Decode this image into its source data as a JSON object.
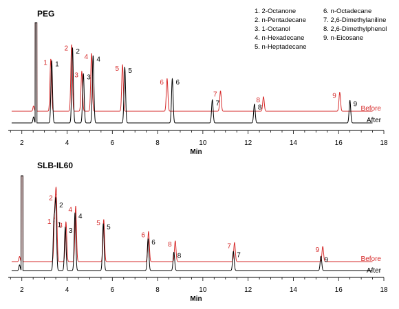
{
  "colors": {
    "before": "#d62a2a",
    "after": "#000000"
  },
  "legend": {
    "col1": [
      "1. 2-Octanone",
      "2. n-Pentadecane",
      "3. 1-Octanol",
      "4. n-Hexadecane",
      "5. n-Heptadecane"
    ],
    "col2": [
      "6. n-Octadecane",
      "7. 2,6-Dimethylaniline",
      "8. 2,6-Dimethylphenol",
      "9. n-Eicosane"
    ]
  },
  "chart_data": [
    {
      "type": "line",
      "title": "PEG",
      "xlabel": "Min",
      "ylabel": "",
      "xlim": [
        1.4,
        18
      ],
      "xticks": [
        2,
        4,
        6,
        8,
        10,
        12,
        14,
        16,
        18
      ],
      "series_labels": {
        "before": "Before",
        "after": "After"
      },
      "solvent": {
        "before": 2.62,
        "after": 2.62
      },
      "series": [
        {
          "name": "Before",
          "peaks": [
            {
              "id": "1",
              "rt": 3.28,
              "height": 0.72
            },
            {
              "id": "2",
              "rt": 4.2,
              "height": 0.92
            },
            {
              "id": "3",
              "rt": 4.65,
              "height": 0.55
            },
            {
              "id": "4",
              "rt": 5.08,
              "height": 0.8
            },
            {
              "id": "5",
              "rt": 6.45,
              "height": 0.64
            },
            {
              "id": "6",
              "rt": 8.42,
              "height": 0.45
            },
            {
              "id": "7",
              "rt": 10.78,
              "height": 0.28
            },
            {
              "id": "8",
              "rt": 12.68,
              "height": 0.2
            },
            {
              "id": "9",
              "rt": 16.05,
              "height": 0.26
            }
          ]
        },
        {
          "name": "After",
          "peaks": [
            {
              "id": "1",
              "rt": 3.32,
              "height": 0.86
            },
            {
              "id": "2",
              "rt": 4.24,
              "height": 1.04
            },
            {
              "id": "3",
              "rt": 4.72,
              "height": 0.68
            },
            {
              "id": "4",
              "rt": 5.15,
              "height": 0.93
            },
            {
              "id": "5",
              "rt": 6.55,
              "height": 0.77
            },
            {
              "id": "6",
              "rt": 8.65,
              "height": 0.61
            },
            {
              "id": "7",
              "rt": 10.42,
              "height": 0.32
            },
            {
              "id": "8",
              "rt": 12.28,
              "height": 0.26
            },
            {
              "id": "9",
              "rt": 16.5,
              "height": 0.31
            }
          ]
        }
      ]
    },
    {
      "type": "line",
      "title": "SLB-IL60",
      "xlabel": "Min",
      "ylabel": "",
      "xlim": [
        1.4,
        18
      ],
      "xticks": [
        2,
        4,
        6,
        8,
        10,
        12,
        14,
        16,
        18
      ],
      "series_labels": {
        "before": "Before",
        "after": "After"
      },
      "solvent": {
        "before": 2.0,
        "after": 2.0
      },
      "series": [
        {
          "name": "Before",
          "peaks": [
            {
              "id": "1",
              "rt": 3.45,
              "height": 0.55
            },
            {
              "id": "2",
              "rt": 3.52,
              "height": 0.85
            },
            {
              "id": "3",
              "rt": 3.95,
              "height": 0.5
            },
            {
              "id": "4",
              "rt": 4.38,
              "height": 0.7
            },
            {
              "id": "5",
              "rt": 5.62,
              "height": 0.53
            },
            {
              "id": "6",
              "rt": 7.6,
              "height": 0.38
            },
            {
              "id": "7",
              "rt": 11.4,
              "height": 0.24
            },
            {
              "id": "8",
              "rt": 8.78,
              "height": 0.26
            },
            {
              "id": "9",
              "rt": 15.3,
              "height": 0.19
            }
          ]
        },
        {
          "name": "After",
          "peaks": [
            {
              "id": "1",
              "rt": 3.42,
              "height": 0.62
            },
            {
              "id": "2",
              "rt": 3.5,
              "height": 0.87
            },
            {
              "id": "3",
              "rt": 3.92,
              "height": 0.55
            },
            {
              "id": "4",
              "rt": 4.35,
              "height": 0.73
            },
            {
              "id": "5",
              "rt": 5.6,
              "height": 0.59
            },
            {
              "id": "6",
              "rt": 7.58,
              "height": 0.4
            },
            {
              "id": "7",
              "rt": 11.35,
              "height": 0.24
            },
            {
              "id": "8",
              "rt": 8.72,
              "height": 0.23
            },
            {
              "id": "9",
              "rt": 15.22,
              "height": 0.18
            }
          ]
        }
      ]
    }
  ]
}
